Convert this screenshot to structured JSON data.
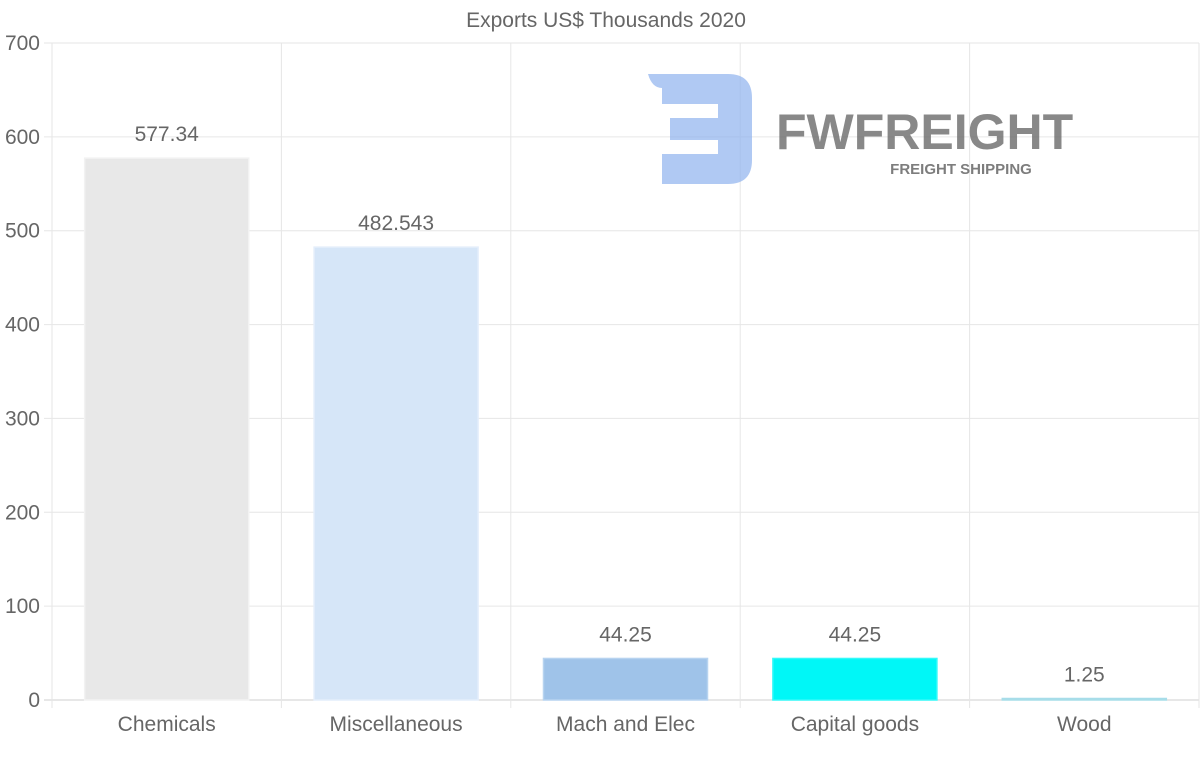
{
  "chart_data": {
    "type": "bar",
    "title": "Exports US$ Thousands 2020",
    "categories": [
      "Chemicals",
      "Miscellaneous",
      "Mach and Elec",
      "Capital goods",
      "Wood"
    ],
    "values": [
      577.34,
      482.543,
      44.25,
      44.25,
      1.25
    ],
    "value_labels": [
      "577.34",
      "482.543",
      "44.25",
      "44.25",
      "1.25"
    ],
    "colors": [
      "#e8e8e8",
      "#d6e6f8",
      "#9fc3e9",
      "#00f7f7",
      "#bfe6f0"
    ],
    "border_colors": [
      "#f2f2f2",
      "#e4eefb",
      "#b7d3f0",
      "#33f9f9",
      "#a7dde9"
    ],
    "ylim": [
      0,
      700
    ],
    "yticks": [
      0,
      100,
      200,
      300,
      400,
      500,
      600,
      700
    ],
    "xlabel": "",
    "ylabel": "",
    "grid": true,
    "legend": "none"
  },
  "watermark": {
    "name": "FWFREIGHT",
    "tagline": "FREIGHT SHIPPING",
    "color": "#9dbcf0"
  }
}
